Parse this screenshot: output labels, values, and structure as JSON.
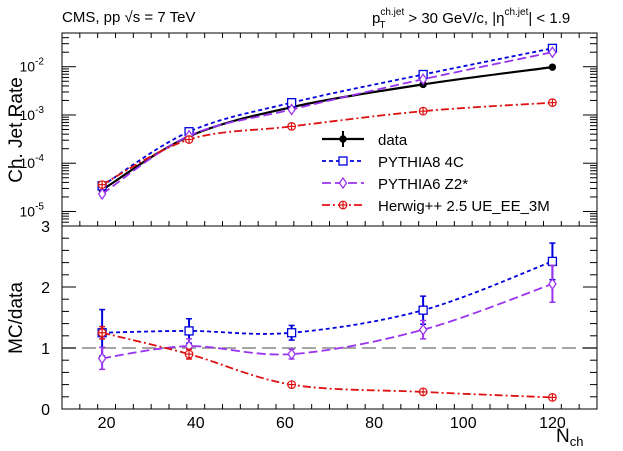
{
  "chart_data": [
    {
      "type": "line",
      "panel": "top",
      "yscale": "log",
      "ylabel": "Ch. Jet Rate",
      "header_left": "CMS, pp √s = 7 TeV",
      "header_right": "p_T^{ch.jet} > 30 GeV/c, |η^{ch.jet}| < 1.9",
      "header_right_parts": {
        "p": "p",
        "T": "T",
        "chjet1": "ch.jet",
        "mid": " > 30 GeV/c, |η",
        "chjet2": "ch.jet",
        "end": "| < 1.9"
      },
      "xlim": [
        10,
        130
      ],
      "ylim": [
        5e-06,
        0.05
      ],
      "y_ticks": [
        {
          "value": 1e-05,
          "base": "10",
          "exp": "-5"
        },
        {
          "value": 0.0001,
          "base": "10",
          "exp": "-4"
        },
        {
          "value": 0.001,
          "base": "10",
          "exp": "-3"
        },
        {
          "value": 0.01,
          "base": "10",
          "exp": "-2"
        }
      ],
      "legend_position": "center-right",
      "series": [
        {
          "name": "data",
          "color": "#000000",
          "dash": "",
          "marker": "circle",
          "x": [
            19,
            38.5,
            61.5,
            91,
            120
          ],
          "values": [
            2.8e-05,
            0.00036,
            0.00145,
            0.0043,
            0.0098
          ]
        },
        {
          "name": "PYTHIA8 4C",
          "color": "#0000dd",
          "dash": "4,3",
          "marker": "square",
          "x": [
            19,
            38.5,
            61.5,
            91,
            120
          ],
          "values": [
            3.4e-05,
            0.00045,
            0.0018,
            0.0069,
            0.024
          ]
        },
        {
          "name": "PYTHIA6 Z2*",
          "color": "#9933ee",
          "dash": "9,4",
          "marker": "diamond",
          "x": [
            19,
            38.5,
            61.5,
            91,
            120
          ],
          "values": [
            2.3e-05,
            0.00037,
            0.0013,
            0.0055,
            0.02
          ]
        },
        {
          "name": "Herwig++ 2.5  UE_EE_3M",
          "color": "#dd1111",
          "dash": "8,3,2,3",
          "marker": "cross",
          "x": [
            19,
            38.5,
            61.5,
            91,
            120
          ],
          "values": [
            3.6e-05,
            0.00031,
            0.00058,
            0.0012,
            0.0018
          ]
        }
      ]
    },
    {
      "type": "line",
      "panel": "bottom",
      "ylabel": "MC/data",
      "xlabel": "N",
      "xlabel_sub": "ch",
      "xlim": [
        10,
        130
      ],
      "ylim": [
        0,
        3
      ],
      "x_ticks": [
        "20",
        "40",
        "60",
        "80",
        "100",
        "120"
      ],
      "y_ticks": [
        "0",
        "1",
        "2",
        "3"
      ],
      "reference_line": 1,
      "series": [
        {
          "name": "PYTHIA8 4C",
          "color": "#0000dd",
          "dash": "4,3",
          "marker": "square",
          "x": [
            19,
            38.5,
            61.5,
            91,
            120
          ],
          "values": [
            1.25,
            1.28,
            1.25,
            1.62,
            2.42
          ],
          "errors": [
            0.38,
            0.2,
            0.12,
            0.23,
            0.3
          ]
        },
        {
          "name": "PYTHIA6 Z2*",
          "color": "#9933ee",
          "dash": "9,4",
          "marker": "diamond",
          "x": [
            19,
            38.5,
            61.5,
            91,
            120
          ],
          "values": [
            0.83,
            1.03,
            0.9,
            1.3,
            2.05
          ],
          "errors": [
            0.18,
            0.12,
            0.08,
            0.15,
            0.3
          ]
        },
        {
          "name": "Herwig++ 2.5  UE_EE_3M",
          "color": "#dd1111",
          "dash": "8,3,2,3",
          "marker": "cross",
          "x": [
            19,
            38.5,
            61.5,
            91,
            120
          ],
          "values": [
            1.25,
            0.9,
            0.4,
            0.28,
            0.19
          ],
          "errors": [
            0.1,
            0.08,
            0.03,
            0.03,
            0.02
          ]
        }
      ]
    }
  ]
}
